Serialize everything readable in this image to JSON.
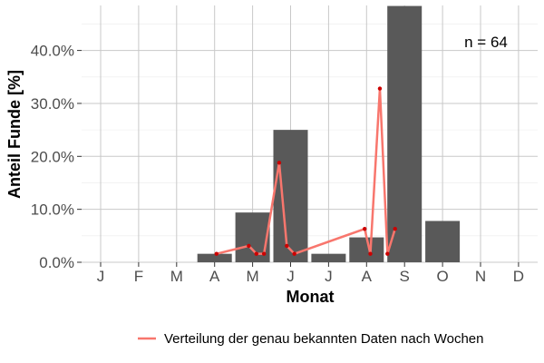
{
  "chart_data": {
    "type": "bar",
    "xlabel": "Monat",
    "ylabel": "Anteil Funde [%]",
    "annotation": "n = 64",
    "categories": [
      "J",
      "F",
      "M",
      "A",
      "M",
      "J",
      "J",
      "A",
      "S",
      "O",
      "N",
      "D"
    ],
    "ylim": [
      0,
      48.5
    ],
    "yticks": [
      0,
      10,
      20,
      30,
      40
    ],
    "ytick_labels": [
      "0.0%",
      "10.0%",
      "20.0%",
      "30.0%",
      "40.0%"
    ],
    "grid": true,
    "series": [
      {
        "type": "bar",
        "values": [
          0,
          0,
          0,
          1.6,
          9.4,
          25.0,
          1.6,
          4.7,
          48.4,
          7.8,
          0,
          0
        ],
        "color": "#595959"
      },
      {
        "type": "line",
        "name": "Verteilung der genau bekannten Daten nach Wochen",
        "color": "#f8766d",
        "x": [
          4.05,
          4.9,
          5.1,
          5.3,
          5.7,
          5.9,
          6.1,
          7.95,
          8.1,
          8.35,
          8.55,
          8.75
        ],
        "y": [
          1.6,
          3.1,
          1.6,
          1.6,
          18.8,
          3.1,
          1.6,
          6.3,
          1.6,
          32.8,
          1.6,
          6.3
        ]
      }
    ],
    "legend_position": "bottom"
  }
}
